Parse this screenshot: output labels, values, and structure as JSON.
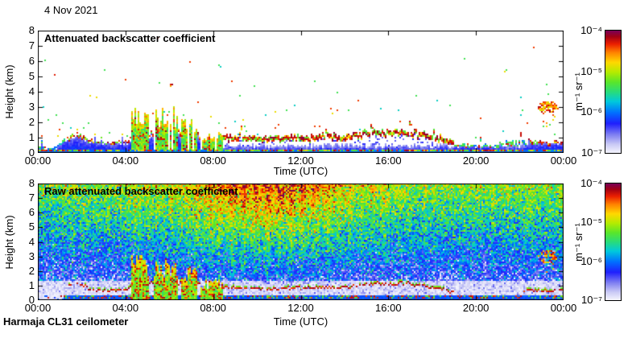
{
  "page": {
    "date_label": "4 Nov 2021",
    "footer_label": "Harmaja CL31 ceilometer",
    "background_color": "#ffffff",
    "text_color": "#000000"
  },
  "colormap": {
    "scale": "log",
    "stops": [
      [
        0,
        "#f4f4fd"
      ],
      [
        0.07,
        "#c9c9f5"
      ],
      [
        0.15,
        "#7e7ef1"
      ],
      [
        0.24,
        "#1f1ffd"
      ],
      [
        0.33,
        "#0071ff"
      ],
      [
        0.42,
        "#00c9dc"
      ],
      [
        0.5,
        "#29dc79"
      ],
      [
        0.58,
        "#5be629"
      ],
      [
        0.66,
        "#b5eb00"
      ],
      [
        0.74,
        "#ffd800"
      ],
      [
        0.82,
        "#ff8300"
      ],
      [
        0.89,
        "#eb1f00"
      ],
      [
        0.95,
        "#a10014"
      ],
      [
        1,
        "#790059"
      ]
    ]
  },
  "chart_data": [
    {
      "type": "heatmap",
      "title": "Attenuated backscatter coefficient",
      "xlabel": "Time (UTC)",
      "ylabel": "Height (km)",
      "x_tick_labels": [
        "00:00",
        "04:00",
        "08:00",
        "12:00",
        "16:00",
        "20:00",
        "00:00"
      ],
      "y_tick_labels": [
        "0",
        "1",
        "2",
        "3",
        "4",
        "5",
        "6",
        "7",
        "8"
      ],
      "x_range_hours": [
        0,
        24
      ],
      "y_range_km": [
        0,
        8
      ],
      "colorbar": {
        "tick_labels": [
          "10⁻⁴",
          "10⁻⁵",
          "10⁻⁶",
          "10⁻⁷"
        ],
        "unit": "m⁻¹ sr⁻¹",
        "min": "1e-7",
        "max": "1e-4",
        "scale": "log"
      },
      "features": {
        "boundary_layer_top_km": {
          "hours": [
            0,
            0.7,
            1.6,
            2.1,
            2.6,
            3.4,
            4.1,
            4.5,
            4.9,
            5.4,
            5.9,
            6.4,
            6.9,
            7.4,
            7.9,
            8.6,
            9.5,
            10.5,
            11.5,
            12.5,
            13.2,
            14,
            14.7,
            15.4,
            16.1,
            16.9,
            17.6,
            18.3,
            19,
            20,
            21,
            22,
            22.7,
            23.4,
            24
          ],
          "values": [
            0.45,
            0.3,
            1.25,
            1.05,
            0.7,
            0.75,
            0.75,
            1.6,
            1.2,
            1.4,
            1.0,
            1.3,
            1.1,
            1.2,
            1.1,
            0.95,
            0.9,
            0.85,
            0.95,
            0.9,
            1.05,
            0.95,
            1.1,
            1.35,
            1.2,
            1.3,
            1.1,
            0.9,
            0.6,
            0.5,
            0.55,
            0.6,
            0.75,
            0.7,
            0.8
          ]
        },
        "plumes": [
          {
            "start_hour": 4.25,
            "end_hour": 5.05,
            "top_km": 3.15
          },
          {
            "start_hour": 5.3,
            "end_hour": 6.35,
            "top_km": 2.9
          },
          {
            "start_hour": 6.5,
            "end_hour": 7.3,
            "top_km": 2.3
          },
          {
            "start_hour": 7.4,
            "end_hour": 8.45,
            "top_km": 1.5
          }
        ],
        "strong_cloud_line_hours": [
          [
            1.3,
            19.0
          ],
          [
            22.4,
            24
          ]
        ],
        "haze_gap_hours": [
          8.4,
          22.3
        ],
        "cloud_patch": {
          "hour": 23.3,
          "height_km": 2.95,
          "h_radius_hours": 0.45,
          "v_radius_km": 0.4
        },
        "isolated_echoes": [
          {
            "hour": 6.05,
            "height_km": 4.5
          },
          {
            "hour": 0.77,
            "height_km": 5.1
          },
          {
            "hour": 5.5,
            "height_km": 7.5
          }
        ]
      }
    },
    {
      "type": "heatmap",
      "title": "Raw attenuated backscatter coefficient",
      "xlabel": "Time (UTC)",
      "ylabel": "Height (km)",
      "x_tick_labels": [
        "00:00",
        "04:00",
        "08:00",
        "12:00",
        "16:00",
        "20:00",
        "00:00"
      ],
      "y_tick_labels": [
        "0",
        "1",
        "2",
        "3",
        "4",
        "5",
        "6",
        "7",
        "8"
      ],
      "x_range_hours": [
        0,
        24
      ],
      "y_range_km": [
        0,
        8
      ],
      "colorbar": {
        "tick_labels": [
          "10⁻⁴",
          "10⁻⁵",
          "10⁻⁶",
          "10⁻⁷"
        ],
        "unit": "m⁻¹ sr⁻¹",
        "min": "1e-7",
        "max": "1e-4",
        "scale": "log"
      },
      "noise": {
        "description": "solar background noise, increases with height, strongest around midday 08:00-14:00",
        "day_peak_hour": 10.5,
        "day_width_hours": 4.2,
        "white_band_km": [
          0.3,
          1.3
        ],
        "surface_blue_km": 0.3
      }
    }
  ]
}
